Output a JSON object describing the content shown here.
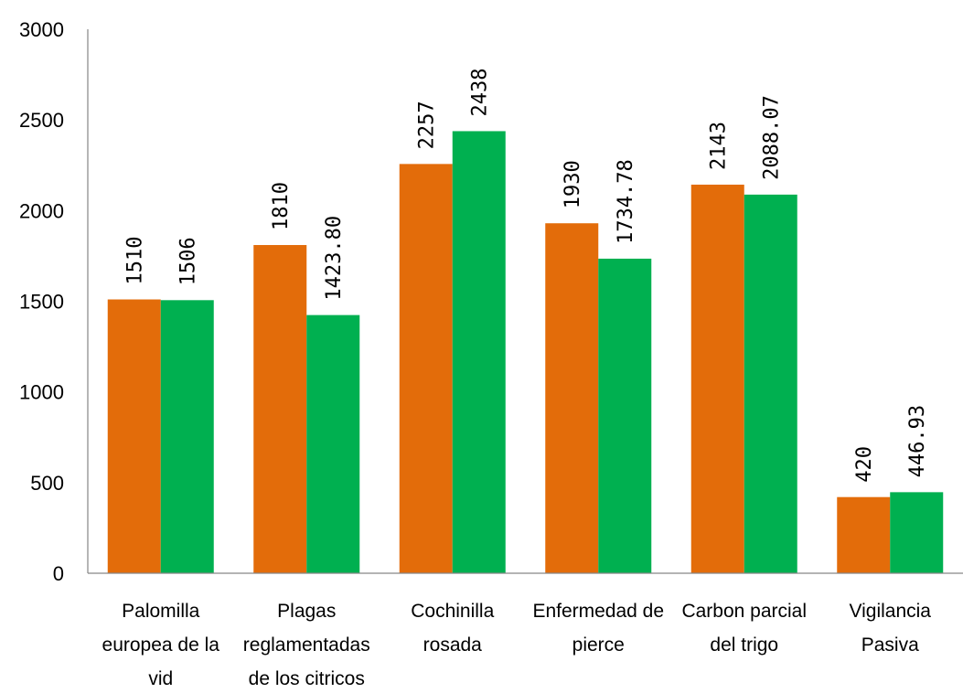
{
  "chart_data": {
    "type": "bar",
    "title": "",
    "xlabel": "",
    "ylabel": "",
    "ylim": [
      0,
      3000
    ],
    "yticks": [
      0,
      500,
      1000,
      1500,
      2000,
      2500,
      3000
    ],
    "grid": false,
    "legend": "none",
    "categories": [
      [
        "Palomilla",
        "europea de la",
        "vid"
      ],
      [
        "Plagas",
        "reglamentadas",
        "de los citricos"
      ],
      [
        "Cochinilla",
        "rosada"
      ],
      [
        "Enfermedad de",
        "pierce"
      ],
      [
        "Carbon parcial",
        "del trigo"
      ],
      [
        "Vigilancia",
        "Pasiva"
      ]
    ],
    "series": [
      {
        "color": "#E36C0A",
        "values": [
          1510,
          1810,
          2257,
          1930,
          2143,
          420
        ],
        "labels": [
          "1510",
          "1810",
          "2257",
          "1930",
          "2143",
          "420"
        ]
      },
      {
        "color": "#00B050",
        "values": [
          1506,
          1423.8,
          2438,
          1734.78,
          2088.07,
          446.93
        ],
        "labels": [
          "1506",
          "1423.80",
          "2438",
          "1734.78",
          "2088.07",
          "446.93"
        ]
      }
    ]
  }
}
